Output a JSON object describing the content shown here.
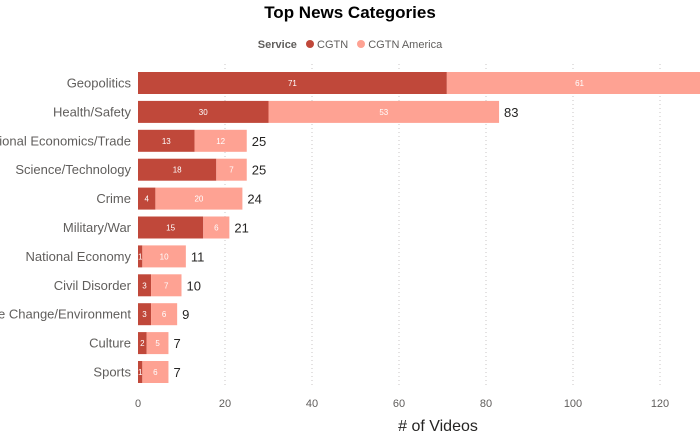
{
  "chart_data": {
    "type": "bar",
    "orientation": "horizontal",
    "stacked": true,
    "title": "Top News Categories",
    "legend": {
      "title": "Service",
      "placement": "top-center"
    },
    "categories": [
      "Geopolitics",
      "Health/Safety",
      "International Economics/Trade",
      "Science/Technology",
      "Crime",
      "Military/War",
      "National Economy",
      "Civil Disorder",
      "Climate Change/Environment",
      "Culture",
      "Sports"
    ],
    "series": [
      {
        "name": "CGTN",
        "color": "#c0483a",
        "values": [
          71,
          30,
          13,
          18,
          4,
          15,
          1,
          3,
          3,
          2,
          1
        ]
      },
      {
        "name": "CGTN America",
        "color": "#fea293",
        "values": [
          61,
          53,
          12,
          7,
          20,
          6,
          10,
          7,
          6,
          5,
          6
        ]
      }
    ],
    "totals": [
      "",
      "83",
      "25",
      "25",
      "24",
      "21",
      "11",
      "10",
      "9",
      "7",
      "7"
    ],
    "xlabel": "# of Videos",
    "ylabel": "",
    "xlim": [
      0,
      130
    ],
    "xticks": [
      0,
      20,
      40,
      60,
      80,
      100,
      120
    ],
    "grid": true
  }
}
